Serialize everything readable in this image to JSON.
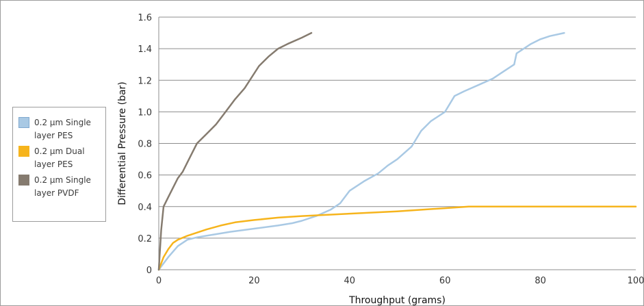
{
  "chart_data": {
    "type": "line",
    "xlabel": "Throughput (grams)",
    "ylabel": "Differential Pressure (bar)",
    "xlim": [
      0,
      100
    ],
    "ylim": [
      0,
      1.6
    ],
    "xticks": [
      0,
      20,
      40,
      60,
      80,
      100
    ],
    "xtick_labels": [
      "0",
      "20",
      "40",
      "60",
      "80",
      "100"
    ],
    "yticks": [
      0,
      0.2,
      0.4,
      0.6,
      0.8,
      1.0,
      1.2,
      1.4,
      1.6
    ],
    "ytick_labels": [
      "0",
      "0.2",
      "0.4",
      "0.6",
      "0.8",
      "1.0",
      "1.2",
      "1.4",
      "1.6"
    ],
    "grid": "horizontal",
    "legend_position": "left",
    "series": [
      {
        "name": "0.2 µm Single layer PES",
        "color": "#a9c9e4",
        "x": [
          0,
          2,
          4,
          6,
          8,
          10,
          15,
          20,
          25,
          28,
          30,
          33,
          36,
          38,
          40,
          43,
          46,
          48,
          50,
          53,
          55,
          57,
          60,
          62,
          64,
          67,
          70,
          72,
          74.5,
          75,
          76,
          78,
          80,
          82,
          85
        ],
        "y": [
          0,
          0.08,
          0.15,
          0.19,
          0.205,
          0.215,
          0.24,
          0.26,
          0.28,
          0.295,
          0.31,
          0.34,
          0.38,
          0.42,
          0.5,
          0.56,
          0.61,
          0.66,
          0.7,
          0.78,
          0.88,
          0.94,
          1.0,
          1.1,
          1.13,
          1.17,
          1.21,
          1.25,
          1.3,
          1.37,
          1.39,
          1.43,
          1.46,
          1.48,
          1.5
        ]
      },
      {
        "name": "0.2 µm Dual layer PES",
        "color": "#f6b41c",
        "x": [
          0,
          1,
          2,
          3,
          4,
          6,
          8,
          10,
          13,
          16,
          20,
          25,
          30,
          40,
          50,
          60,
          65,
          70,
          80,
          90,
          100
        ],
        "y": [
          0,
          0.08,
          0.13,
          0.17,
          0.19,
          0.215,
          0.235,
          0.255,
          0.28,
          0.3,
          0.315,
          0.33,
          0.34,
          0.355,
          0.37,
          0.39,
          0.4,
          0.4,
          0.4,
          0.4,
          0.4
        ]
      },
      {
        "name": "0.2 µm Single layer PVDF",
        "color": "#857b6f",
        "x": [
          0,
          0.5,
          1,
          2,
          3,
          4,
          5,
          6,
          7,
          8,
          10,
          12,
          14,
          16,
          18,
          21,
          23,
          25,
          27,
          30,
          32
        ],
        "y": [
          0,
          0.25,
          0.4,
          0.46,
          0.52,
          0.58,
          0.62,
          0.68,
          0.74,
          0.8,
          0.86,
          0.92,
          1.0,
          1.08,
          1.15,
          1.29,
          1.35,
          1.4,
          1.43,
          1.47,
          1.5
        ]
      }
    ]
  }
}
